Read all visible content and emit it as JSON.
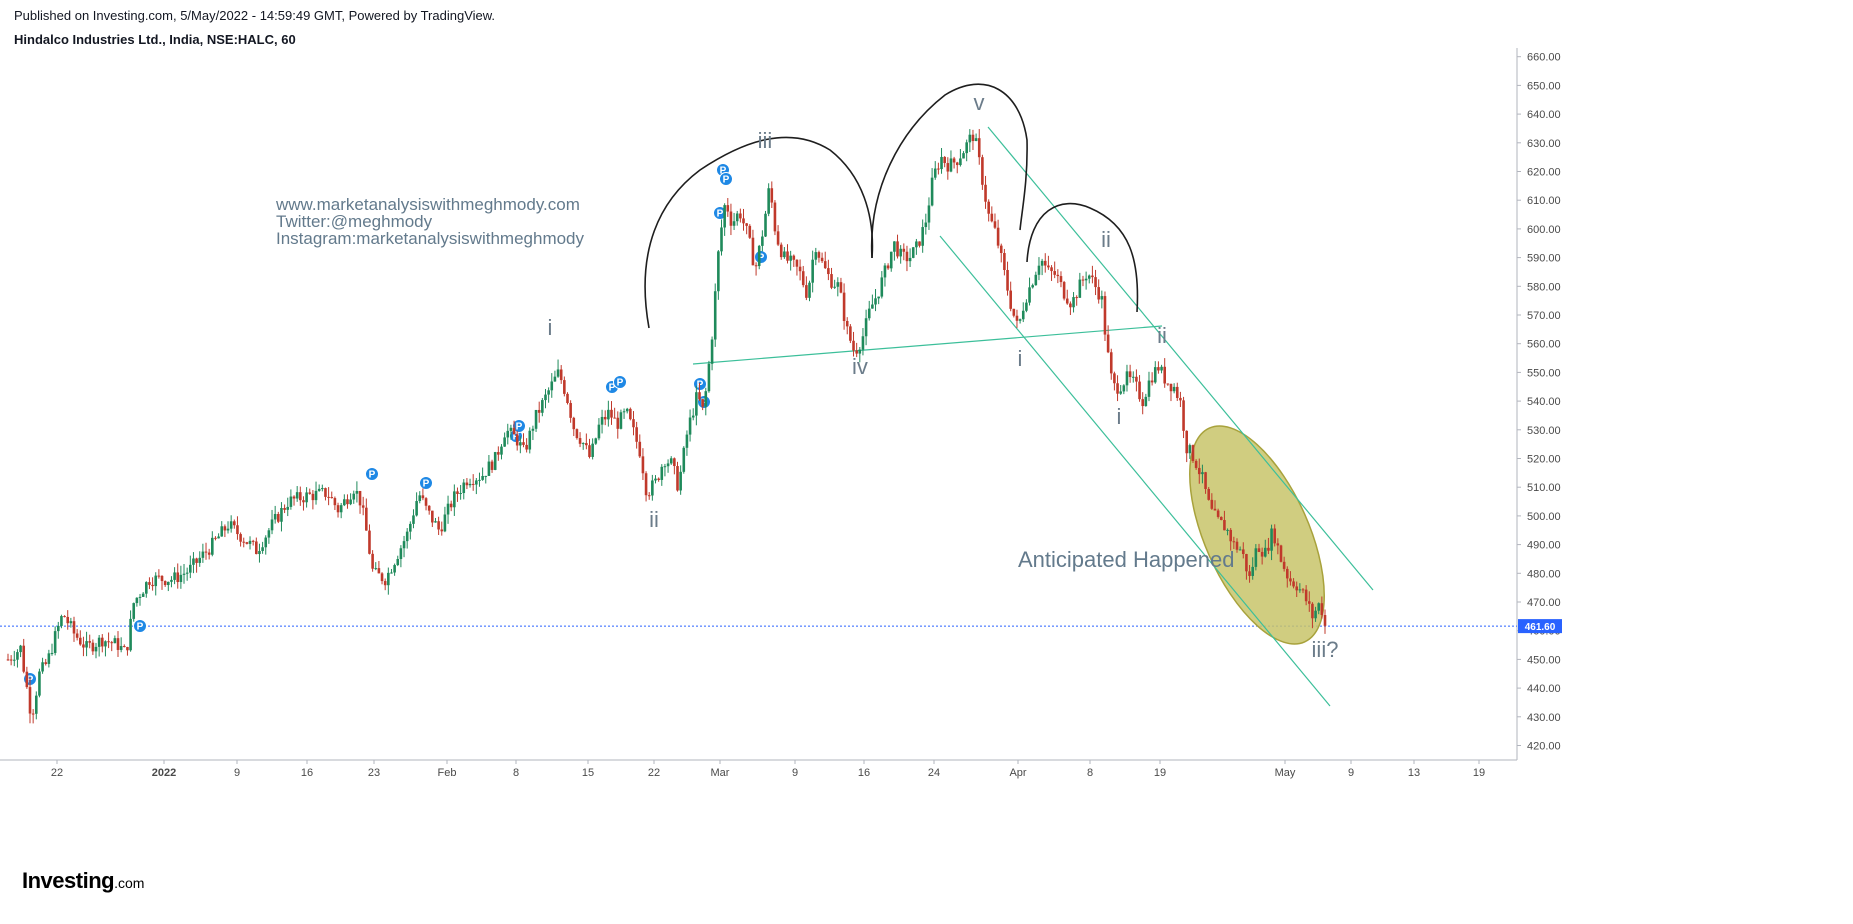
{
  "header": {
    "published": "Published on Investing.com, 5/May/2022 - 14:59:49 GMT, Powered by TradingView.",
    "symbol": "Hindalco Industries Ltd., India, NSE:HALC, 60"
  },
  "logo": {
    "name": "Investing",
    "suffix": ".com"
  },
  "chart_data": {
    "type": "candlestick",
    "symbol": "NSE:HALC",
    "interval": "60",
    "ylim": [
      415,
      662
    ],
    "y_ticks": [
      420,
      430,
      440,
      450,
      460,
      470,
      480,
      490,
      500,
      510,
      520,
      530,
      540,
      550,
      560,
      570,
      580,
      590,
      600,
      610,
      620,
      630,
      640,
      650,
      660
    ],
    "x_ticks": [
      "22",
      "2022",
      "9",
      "16",
      "23",
      "Feb",
      "8",
      "15",
      "22",
      "Mar",
      "9",
      "16",
      "24",
      "Apr",
      "8",
      "19",
      "May",
      "9",
      "13",
      "19"
    ],
    "last_price": 461.6,
    "last_price_label": "461.60",
    "price_path": [
      [
        0.0,
        450
      ],
      [
        0.8,
        454
      ],
      [
        1.2,
        440
      ],
      [
        1.5,
        430
      ],
      [
        2.0,
        445
      ],
      [
        2.5,
        449
      ],
      [
        3.0,
        458
      ],
      [
        3.5,
        466
      ],
      [
        4.2,
        459
      ],
      [
        5.0,
        454
      ],
      [
        6.0,
        457
      ],
      [
        7.0,
        455
      ],
      [
        7.5,
        452
      ],
      [
        8.0,
        470
      ],
      [
        9.0,
        478
      ],
      [
        10.5,
        478
      ],
      [
        11.5,
        481
      ],
      [
        13.0,
        490
      ],
      [
        14.0,
        497
      ],
      [
        15.0,
        492
      ],
      [
        15.8,
        488
      ],
      [
        16.8,
        497
      ],
      [
        17.8,
        505
      ],
      [
        19.0,
        507
      ],
      [
        20.3,
        508
      ],
      [
        21.0,
        502
      ],
      [
        22.0,
        510
      ],
      [
        22.4,
        505
      ],
      [
        22.7,
        497
      ],
      [
        23.2,
        480
      ],
      [
        24.0,
        478
      ],
      [
        24.6,
        485
      ],
      [
        25.4,
        494
      ],
      [
        26.1,
        508
      ],
      [
        26.6,
        502
      ],
      [
        27.4,
        495
      ],
      [
        28.3,
        506
      ],
      [
        29.2,
        513
      ],
      [
        30.1,
        514
      ],
      [
        31.0,
        520
      ],
      [
        31.6,
        530
      ],
      [
        32.3,
        527
      ],
      [
        32.8,
        522
      ],
      [
        33.5,
        534
      ],
      [
        34.5,
        545
      ],
      [
        35.0,
        550
      ],
      [
        35.5,
        542
      ],
      [
        36.0,
        530
      ],
      [
        36.5,
        526
      ],
      [
        37.0,
        520
      ],
      [
        37.6,
        532
      ],
      [
        38.2,
        536
      ],
      [
        38.7,
        532
      ],
      [
        39.3,
        536
      ],
      [
        39.7,
        530
      ],
      [
        40.2,
        522
      ],
      [
        40.6,
        508
      ],
      [
        41.2,
        512
      ],
      [
        41.7,
        520
      ],
      [
        42.2,
        518
      ],
      [
        42.6,
        510
      ],
      [
        43.2,
        530
      ],
      [
        43.8,
        542
      ],
      [
        44.2,
        536
      ],
      [
        44.7,
        560
      ],
      [
        45.2,
        595
      ],
      [
        45.6,
        610
      ],
      [
        46.0,
        602
      ],
      [
        46.5,
        606
      ],
      [
        47.0,
        598
      ],
      [
        47.5,
        586
      ],
      [
        48.0,
        600
      ],
      [
        48.4,
        615
      ],
      [
        48.8,
        598
      ],
      [
        49.3,
        590
      ],
      [
        49.8,
        588
      ],
      [
        50.3,
        585
      ],
      [
        50.8,
        577
      ],
      [
        51.3,
        595
      ],
      [
        51.8,
        587
      ],
      [
        52.3,
        582
      ],
      [
        52.8,
        580
      ],
      [
        53.3,
        565
      ],
      [
        53.8,
        557
      ],
      [
        54.3,
        562
      ],
      [
        54.8,
        572
      ],
      [
        55.3,
        578
      ],
      [
        55.8,
        586
      ],
      [
        56.3,
        595
      ],
      [
        56.8,
        590
      ],
      [
        57.3,
        590
      ],
      [
        57.8,
        594
      ],
      [
        58.3,
        602
      ],
      [
        58.8,
        618
      ],
      [
        59.3,
        625
      ],
      [
        59.8,
        622
      ],
      [
        60.3,
        624
      ],
      [
        60.8,
        628
      ],
      [
        61.3,
        633
      ],
      [
        61.5,
        630
      ],
      [
        61.9,
        618
      ],
      [
        62.3,
        605
      ],
      [
        62.8,
        598
      ],
      [
        63.3,
        585
      ],
      [
        63.8,
        572
      ],
      [
        64.2,
        565
      ],
      [
        64.6,
        575
      ],
      [
        65.1,
        582
      ],
      [
        65.6,
        590
      ],
      [
        66.1,
        585
      ],
      [
        66.6,
        584
      ],
      [
        67.1,
        578
      ],
      [
        67.6,
        574
      ],
      [
        68.1,
        580
      ],
      [
        68.6,
        585
      ],
      [
        69.1,
        580
      ],
      [
        69.5,
        576
      ],
      [
        69.8,
        560
      ],
      [
        70.2,
        545
      ],
      [
        70.6,
        545
      ],
      [
        71.1,
        548
      ],
      [
        71.6,
        546
      ],
      [
        72.1,
        540
      ],
      [
        72.6,
        548
      ],
      [
        73.1,
        552
      ],
      [
        73.6,
        547
      ],
      [
        74.1,
        545
      ],
      [
        74.5,
        540
      ],
      [
        74.9,
        524
      ],
      [
        75.4,
        520
      ],
      [
        75.9,
        513
      ],
      [
        76.4,
        502
      ],
      [
        76.9,
        498
      ],
      [
        77.4,
        496
      ],
      [
        77.9,
        490
      ],
      [
        78.4,
        488
      ],
      [
        78.9,
        478
      ],
      [
        79.4,
        490
      ],
      [
        79.9,
        487
      ],
      [
        80.4,
        495
      ],
      [
        80.9,
        485
      ],
      [
        81.4,
        478
      ],
      [
        81.9,
        476
      ],
      [
        82.4,
        472
      ],
      [
        82.9,
        465
      ],
      [
        83.4,
        470
      ],
      [
        83.7,
        461.6
      ]
    ],
    "annotations": {
      "wave_labels": [
        "i",
        "ii",
        "iii",
        "iv",
        "v",
        "i",
        "ii",
        "i",
        "ii",
        "iii?"
      ],
      "text": "Anticipated Happened",
      "promo": [
        "www.marketanalysiswithmeghmody.com",
        "Twitter:@meghmody",
        "Instagram:marketanalysiswithmeghmody"
      ],
      "lines": [
        "neckline",
        "channel-upper",
        "channel-lower",
        "head-and-shoulders arcs",
        "highlight ellipse"
      ]
    },
    "grid": false,
    "colors": {
      "up": "#26a69a",
      "up_body": "#1f8a5b",
      "down": "#ef5350",
      "down_body": "#c0392b",
      "price_line": "#2962ff",
      "trendline": "#3cbf9a",
      "ellipse_fill": "#c8c46a",
      "ellipse_stroke": "#a8a23c",
      "arc": "#1e1e1e",
      "marker": "#1e88e5"
    },
    "marker_label": "P"
  }
}
